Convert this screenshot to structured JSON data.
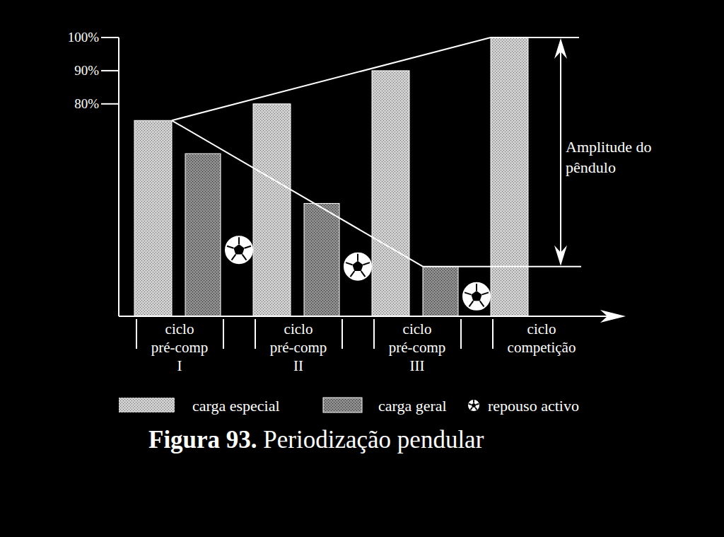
{
  "chart_data": {
    "type": "bar",
    "title": "Figura 93. Periodização pendular",
    "categories": [
      "ciclo pré-comp I",
      "ciclo pré-comp II",
      "ciclo pré-comp III",
      "ciclo competição"
    ],
    "series": [
      {
        "name": "carga especial",
        "color": "#cfcfcf",
        "values": [
          75,
          80,
          90,
          100
        ]
      },
      {
        "name": "carga geral",
        "color": "#8c8c8c",
        "values": [
          65,
          50,
          31,
          null
        ]
      },
      {
        "name": "repouso activo",
        "type": "scatter",
        "marker": "ball",
        "color": "#ffffff",
        "values": [
          36,
          31,
          22,
          null
        ]
      }
    ],
    "annotation": "Amplitude do\npêndulo",
    "ylim": [
      16,
      100
    ],
    "yticks": [
      {
        "value": 80,
        "label": "80%"
      },
      {
        "value": 90,
        "label": "90%"
      },
      {
        "value": 100,
        "label": "100%"
      }
    ],
    "grid": false,
    "legend": "bottom"
  }
}
